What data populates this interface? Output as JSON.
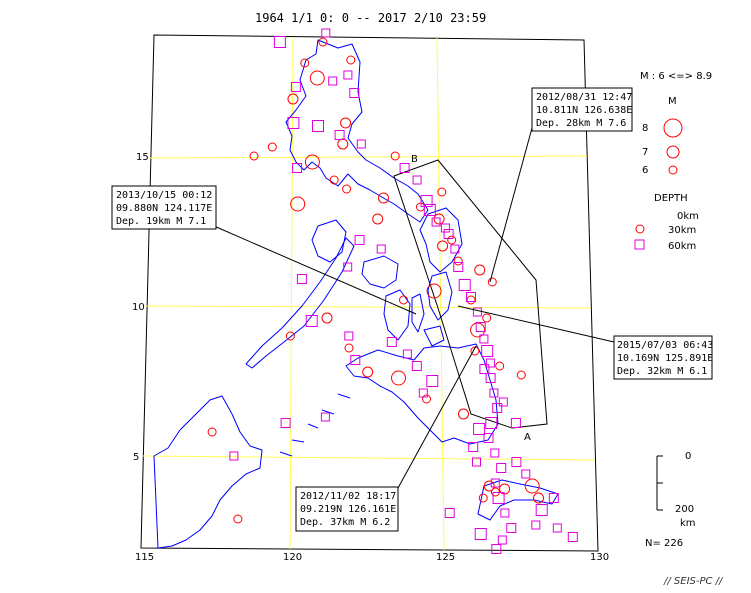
{
  "title": "1964 1/1 0: 0 -- 2017 2/10 23:59",
  "colors": {
    "circle": "#ff0000",
    "square": "#e000e0",
    "grid": "#ffff55",
    "coast": "#0000ff",
    "frame": "#000000"
  },
  "axes": {
    "lon_ticks": [
      "115",
      "120",
      "125",
      "130"
    ],
    "lat_ticks": [
      "15",
      "10",
      "5"
    ]
  },
  "section": {
    "label_a": "A",
    "label_b": "B"
  },
  "legend": {
    "mag_range": "M : 6 <=> 8.9",
    "mag_title": "M",
    "mag_items": [
      "8",
      "7",
      "6"
    ],
    "depth_title": "DEPTH",
    "depth_items": [
      "0km",
      "30km",
      "60km"
    ],
    "depth_bar": [
      "0",
      "200",
      "km"
    ],
    "count": "N= 226"
  },
  "callouts": [
    {
      "line1": "2012/08/31 12:47",
      "line2": "10.811N  126.638E",
      "line3": "Dep. 28km    M 7.6"
    },
    {
      "line1": "2013/10/15 00:12",
      "line2": "09.880N  124.117E",
      "line3": "Dep. 19km    M 7.1"
    },
    {
      "line1": "2015/07/03 06:43",
      "line2": "10.169N  125.891E",
      "line3": "Dep. 32km    M 6.1"
    },
    {
      "line1": "2012/11/02 18:17",
      "line2": "09.219N  126.161E",
      "line3": "Dep. 37km    M 6.2"
    }
  ],
  "credit": "// SEIS-PC //",
  "events": {
    "circles": [
      [
        120.2,
        16.9
      ],
      [
        120.6,
        18.1
      ],
      [
        121.0,
        17.6
      ],
      [
        121.8,
        15.4
      ],
      [
        123.5,
        15.0
      ],
      [
        124.3,
        13.3
      ],
      [
        125.0,
        12.0
      ],
      [
        125.5,
        11.5
      ],
      [
        126.6,
        10.8
      ],
      [
        126.1,
        9.2
      ],
      [
        125.9,
        10.2
      ],
      [
        127.5,
        7.7
      ],
      [
        121.2,
        9.6
      ],
      [
        120.0,
        9.0
      ],
      [
        121.9,
        8.6
      ],
      [
        122.5,
        7.8
      ],
      [
        123.5,
        7.6
      ],
      [
        124.4,
        6.9
      ],
      [
        125.6,
        6.4
      ],
      [
        117.4,
        5.8
      ],
      [
        118.2,
        2.9
      ],
      [
        126.4,
        4.0
      ],
      [
        126.6,
        3.8
      ],
      [
        127.8,
        4.0
      ],
      [
        128.0,
        3.6
      ],
      [
        121.2,
        18.8
      ],
      [
        122.1,
        18.2
      ],
      [
        121.9,
        16.1
      ],
      [
        119.5,
        15.3
      ],
      [
        118.9,
        15.0
      ],
      [
        124.7,
        10.5
      ],
      [
        123.7,
        10.2
      ],
      [
        126.0,
        8.5
      ],
      [
        124.9,
        12.9
      ],
      [
        125.3,
        12.2
      ],
      [
        125.0,
        13.8
      ],
      [
        126.2,
        11.2
      ],
      [
        120.8,
        14.8
      ],
      [
        121.5,
        14.2
      ],
      [
        123.1,
        13.6
      ],
      [
        126.8,
        8.0
      ],
      [
        126.2,
        3.6
      ],
      [
        126.9,
        3.9
      ],
      [
        121.9,
        13.9
      ],
      [
        120.3,
        13.4
      ],
      [
        122.9,
        12.9
      ],
      [
        126.4,
        9.6
      ]
    ],
    "squares": [
      [
        119.8,
        18.8
      ],
      [
        121.3,
        19.1
      ],
      [
        120.3,
        17.3
      ],
      [
        122.0,
        17.7
      ],
      [
        122.2,
        17.1
      ],
      [
        120.2,
        16.1
      ],
      [
        121.7,
        15.7
      ],
      [
        122.4,
        15.4
      ],
      [
        123.8,
        14.6
      ],
      [
        124.2,
        14.2
      ],
      [
        124.5,
        13.5
      ],
      [
        124.8,
        12.8
      ],
      [
        125.2,
        12.4
      ],
      [
        125.4,
        11.9
      ],
      [
        125.5,
        11.3
      ],
      [
        125.7,
        10.7
      ],
      [
        125.9,
        10.3
      ],
      [
        126.1,
        9.8
      ],
      [
        126.2,
        9.3
      ],
      [
        126.3,
        8.9
      ],
      [
        126.4,
        8.5
      ],
      [
        126.5,
        8.1
      ],
      [
        126.5,
        7.6
      ],
      [
        126.6,
        7.1
      ],
      [
        126.7,
        6.6
      ],
      [
        126.5,
        6.1
      ],
      [
        126.4,
        5.6
      ],
      [
        126.6,
        5.1
      ],
      [
        126.8,
        4.6
      ],
      [
        126.6,
        4.1
      ],
      [
        126.7,
        3.6
      ],
      [
        126.9,
        3.1
      ],
      [
        127.1,
        2.6
      ],
      [
        126.8,
        2.2
      ],
      [
        126.6,
        1.9
      ],
      [
        126.1,
        5.9
      ],
      [
        125.9,
        5.3
      ],
      [
        126.0,
        4.8
      ],
      [
        127.3,
        4.8
      ],
      [
        127.6,
        4.4
      ],
      [
        128.1,
        3.2
      ],
      [
        128.6,
        2.6
      ],
      [
        129.1,
        2.3
      ],
      [
        121.1,
        6.3
      ],
      [
        119.8,
        6.1
      ],
      [
        120.7,
        9.5
      ],
      [
        120.4,
        10.9
      ],
      [
        121.9,
        11.3
      ],
      [
        122.3,
        12.2
      ],
      [
        123.0,
        11.9
      ],
      [
        124.6,
        13.2
      ],
      [
        125.1,
        12.6
      ],
      [
        123.3,
        8.8
      ],
      [
        123.8,
        8.4
      ],
      [
        124.1,
        8.0
      ],
      [
        124.6,
        7.5
      ],
      [
        122.1,
        8.2
      ],
      [
        121.9,
        9.0
      ],
      [
        120.3,
        14.6
      ],
      [
        121.5,
        17.5
      ],
      [
        121.0,
        16.0
      ],
      [
        124.3,
        7.1
      ],
      [
        126.3,
        7.9
      ],
      [
        126.9,
        6.8
      ],
      [
        127.3,
        6.1
      ],
      [
        126.1,
        2.4
      ],
      [
        125.1,
        3.1
      ],
      [
        127.9,
        2.7
      ],
      [
        128.5,
        3.6
      ],
      [
        118.1,
        5.0
      ]
    ]
  }
}
